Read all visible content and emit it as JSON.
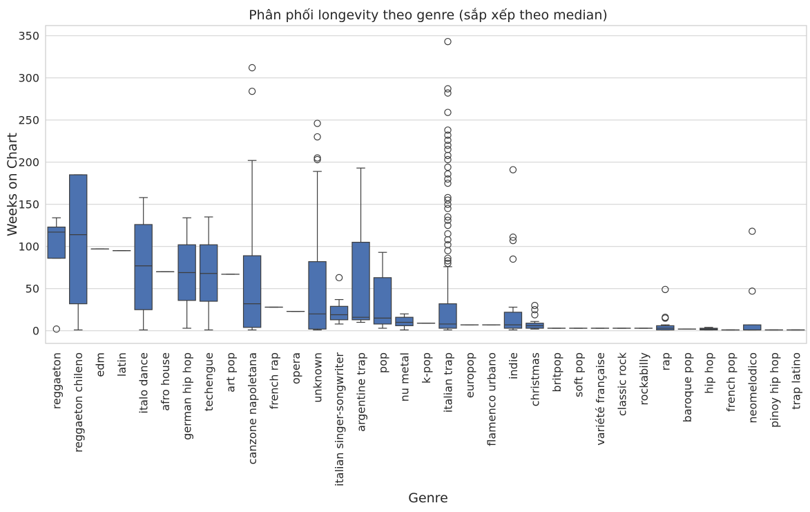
{
  "chart_data": {
    "type": "box",
    "title": "Phân phối longevity theo genre (sắp xếp theo median)",
    "xlabel": "Genre",
    "ylabel": "Weeks on Chart",
    "ylim": [
      -15,
      362
    ],
    "yticks": [
      0,
      50,
      100,
      150,
      200,
      250,
      300,
      350
    ],
    "grid": "horizontal",
    "box_color": "#4c72b0",
    "categories": [
      "reggaeton",
      "reggaeton chileno",
      "edm",
      "latin",
      "italo dance",
      "afro house",
      "german hip hop",
      "techengue",
      "art pop",
      "canzone napoletana",
      "french rap",
      "opera",
      "unknown",
      "italian singer-songwriter",
      "argentine trap",
      "pop",
      "nu metal",
      "k-pop",
      "italian trap",
      "europop",
      "flamenco urbano",
      "indie",
      "christmas",
      "britpop",
      "soft pop",
      "variété française",
      "classic rock",
      "rockabilly",
      "rap",
      "baroque pop",
      "hip hop",
      "french pop",
      "neomelodico",
      "pinoy hip hop",
      "trap latino"
    ],
    "series": [
      {
        "category": "reggaeton",
        "whisker_low": 86,
        "q1": 86,
        "median": 117,
        "q3": 123,
        "whisker_high": 134,
        "outliers": [
          2
        ]
      },
      {
        "category": "reggaeton chileno",
        "whisker_low": 1,
        "q1": 32,
        "median": 114,
        "q3": 185,
        "whisker_high": 185,
        "outliers": []
      },
      {
        "category": "edm",
        "whisker_low": 97,
        "q1": 97,
        "median": 97,
        "q3": 97,
        "whisker_high": 97,
        "outliers": []
      },
      {
        "category": "latin",
        "whisker_low": 95,
        "q1": 95,
        "median": 95,
        "q3": 95,
        "whisker_high": 95,
        "outliers": []
      },
      {
        "category": "italo dance",
        "whisker_low": 1,
        "q1": 25,
        "median": 77,
        "q3": 126,
        "whisker_high": 158,
        "outliers": []
      },
      {
        "category": "afro house",
        "whisker_low": 70,
        "q1": 70,
        "median": 70,
        "q3": 70,
        "whisker_high": 70,
        "outliers": []
      },
      {
        "category": "german hip hop",
        "whisker_low": 3,
        "q1": 36,
        "median": 69,
        "q3": 102,
        "whisker_high": 134,
        "outliers": []
      },
      {
        "category": "techengue",
        "whisker_low": 1,
        "q1": 35,
        "median": 68,
        "q3": 102,
        "whisker_high": 135,
        "outliers": []
      },
      {
        "category": "art pop",
        "whisker_low": 67,
        "q1": 67,
        "median": 67,
        "q3": 67,
        "whisker_high": 67,
        "outliers": []
      },
      {
        "category": "canzone napoletana",
        "whisker_low": 1,
        "q1": 4,
        "median": 32,
        "q3": 89,
        "whisker_high": 202,
        "outliers": [
          284,
          312
        ]
      },
      {
        "category": "french rap",
        "whisker_low": 28,
        "q1": 28,
        "median": 28,
        "q3": 28,
        "whisker_high": 28,
        "outliers": []
      },
      {
        "category": "opera",
        "whisker_low": 23,
        "q1": 23,
        "median": 23,
        "q3": 23,
        "whisker_high": 23,
        "outliers": []
      },
      {
        "category": "unknown",
        "whisker_low": 1,
        "q1": 2,
        "median": 20,
        "q3": 82,
        "whisker_high": 189,
        "outliers": [
          203,
          205,
          230,
          246
        ]
      },
      {
        "category": "italian singer-songwriter",
        "whisker_low": 8,
        "q1": 13,
        "median": 19,
        "q3": 29,
        "whisker_high": 37,
        "outliers": [
          63
        ]
      },
      {
        "category": "argentine trap",
        "whisker_low": 10,
        "q1": 13,
        "median": 16,
        "q3": 105,
        "whisker_high": 193,
        "outliers": []
      },
      {
        "category": "pop",
        "whisker_low": 3,
        "q1": 8,
        "median": 15,
        "q3": 63,
        "whisker_high": 93,
        "outliers": []
      },
      {
        "category": "nu metal",
        "whisker_low": 1,
        "q1": 6,
        "median": 10,
        "q3": 16,
        "whisker_high": 20,
        "outliers": []
      },
      {
        "category": "k-pop",
        "whisker_low": 9,
        "q1": 9,
        "median": 9,
        "q3": 9,
        "whisker_high": 9,
        "outliers": []
      },
      {
        "category": "italian trap",
        "whisker_low": 1,
        "q1": 3,
        "median": 8,
        "q3": 32,
        "whisker_high": 76,
        "outliers": [
          80,
          83,
          86,
          95,
          102,
          108,
          115,
          125,
          131,
          135,
          145,
          150,
          155,
          158,
          175,
          180,
          186,
          194,
          203,
          208,
          215,
          220,
          226,
          232,
          238,
          259,
          282,
          287,
          343
        ]
      },
      {
        "category": "europop",
        "whisker_low": 7,
        "q1": 7,
        "median": 7,
        "q3": 7,
        "whisker_high": 7,
        "outliers": []
      },
      {
        "category": "flamenco urbano",
        "whisker_low": 7,
        "q1": 7,
        "median": 7,
        "q3": 7,
        "whisker_high": 7,
        "outliers": []
      },
      {
        "category": "indie",
        "whisker_low": 1,
        "q1": 3,
        "median": 7,
        "q3": 22,
        "whisker_high": 28,
        "outliers": [
          85,
          107,
          111,
          191
        ]
      },
      {
        "category": "christmas",
        "whisker_low": 2,
        "q1": 3,
        "median": 6,
        "q3": 9,
        "whisker_high": 11,
        "outliers": [
          19,
          25,
          30
        ]
      },
      {
        "category": "britpop",
        "whisker_low": 3,
        "q1": 3,
        "median": 3,
        "q3": 3,
        "whisker_high": 3,
        "outliers": []
      },
      {
        "category": "soft pop",
        "whisker_low": 3,
        "q1": 3,
        "median": 3,
        "q3": 3,
        "whisker_high": 3,
        "outliers": []
      },
      {
        "category": "variété française",
        "whisker_low": 3,
        "q1": 3,
        "median": 3,
        "q3": 3,
        "whisker_high": 3,
        "outliers": []
      },
      {
        "category": "classic rock",
        "whisker_low": 3,
        "q1": 3,
        "median": 3,
        "q3": 3,
        "whisker_high": 3,
        "outliers": []
      },
      {
        "category": "rockabilly",
        "whisker_low": 3,
        "q1": 3,
        "median": 3,
        "q3": 3,
        "whisker_high": 3,
        "outliers": []
      },
      {
        "category": "rap",
        "whisker_low": 1,
        "q1": 1,
        "median": 3,
        "q3": 6,
        "whisker_high": 7,
        "outliers": [
          15,
          16,
          49
        ]
      },
      {
        "category": "baroque pop",
        "whisker_low": 2,
        "q1": 2,
        "median": 2,
        "q3": 2,
        "whisker_high": 2,
        "outliers": []
      },
      {
        "category": "hip hop",
        "whisker_low": 1,
        "q1": 1,
        "median": 2,
        "q3": 3,
        "whisker_high": 4,
        "outliers": []
      },
      {
        "category": "french pop",
        "whisker_low": 1,
        "q1": 1,
        "median": 1,
        "q3": 1,
        "whisker_high": 1,
        "outliers": []
      },
      {
        "category": "neomelodico",
        "whisker_low": 1,
        "q1": 1,
        "median": 1,
        "q3": 7,
        "whisker_high": 7,
        "outliers": [
          47,
          118
        ]
      },
      {
        "category": "pinoy hip hop",
        "whisker_low": 1,
        "q1": 1,
        "median": 1,
        "q3": 1,
        "whisker_high": 1,
        "outliers": []
      },
      {
        "category": "trap latino",
        "whisker_low": 1,
        "q1": 1,
        "median": 1,
        "q3": 1,
        "whisker_high": 1,
        "outliers": []
      }
    ]
  }
}
